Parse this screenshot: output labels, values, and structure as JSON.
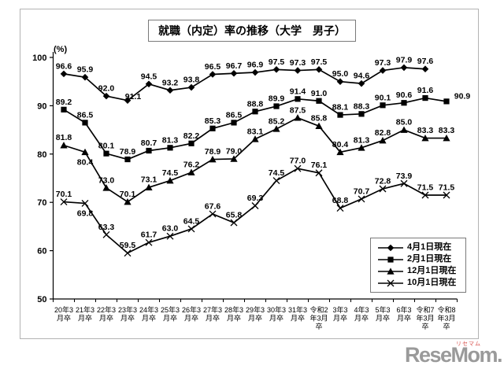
{
  "chart_data": {
    "type": "line",
    "title": "就職（内定）率の推移（大学　男子）",
    "unit_label": "(%)",
    "xlabel": "",
    "ylabel": "%",
    "ylim": [
      50,
      100
    ],
    "yticks": [
      100,
      90,
      80,
      70,
      60,
      50
    ],
    "grid": false,
    "legend_position": "inside-bottom-right",
    "categories": [
      "20年3月卒",
      "21年3月卒",
      "22年3月卒",
      "23年3月卒",
      "24年3月卒",
      "25年3月卒",
      "26年3月卒",
      "27年3月卒",
      "28年3月卒",
      "29年3月卒",
      "30年3月卒",
      "31年3月卒",
      "令和2年3月卒",
      "3年3月卒",
      "4年3月卒",
      "5年3月卒",
      "6年3月卒",
      "令和7年3月卒",
      "令和8年3月卒"
    ],
    "category_label_lines": [
      [
        "20年3",
        "月卒"
      ],
      [
        "21年3",
        "月卒"
      ],
      [
        "22年3",
        "月卒"
      ],
      [
        "23年3",
        "月卒"
      ],
      [
        "24年3",
        "月卒"
      ],
      [
        "25年3",
        "月卒"
      ],
      [
        "26年3",
        "月卒"
      ],
      [
        "27年3",
        "月卒"
      ],
      [
        "28年3",
        "月卒"
      ],
      [
        "29年3",
        "月卒"
      ],
      [
        "30年3",
        "月卒"
      ],
      [
        "31年3",
        "月卒"
      ],
      [
        "令和2",
        "年3月",
        "卒"
      ],
      [
        "3年3",
        "月卒"
      ],
      [
        "4年3",
        "月卒"
      ],
      [
        "5年3",
        "月卒"
      ],
      [
        "6年3",
        "月卒"
      ],
      [
        "令和7",
        "年3月",
        "卒"
      ],
      [
        "令和8",
        "年3月",
        "卒"
      ]
    ],
    "series": [
      {
        "name": "4月1日現在",
        "marker": "diamond",
        "color": "#000000",
        "values": [
          96.6,
          95.9,
          92.0,
          91.1,
          94.5,
          93.2,
          93.8,
          96.5,
          96.7,
          96.9,
          97.5,
          97.3,
          97.5,
          95.0,
          94.6,
          97.3,
          97.9,
          97.6,
          null
        ],
        "label_offsets": {
          "3": [
            7,
            5
          ]
        }
      },
      {
        "name": "2月1日現在",
        "marker": "square",
        "color": "#000000",
        "values": [
          89.2,
          86.5,
          80.1,
          78.9,
          80.7,
          81.3,
          82.2,
          85.3,
          86.5,
          88.8,
          89.9,
          91.4,
          91.0,
          88.1,
          88.3,
          90.1,
          90.6,
          91.6,
          90.9
        ],
        "label_offsets": {
          "18": [
            20,
            3
          ]
        }
      },
      {
        "name": "12月1日現在",
        "marker": "triangle",
        "color": "#000000",
        "values": [
          81.8,
          80.4,
          73.0,
          70.1,
          73.1,
          74.5,
          76.2,
          78.9,
          79.0,
          83.1,
          85.2,
          87.5,
          85.8,
          80.4,
          81.3,
          82.8,
          85.0,
          83.3,
          83.3
        ],
        "labels_below": [
          1
        ]
      },
      {
        "name": "10月1日現在",
        "marker": "x",
        "color": "#000000",
        "values": [
          70.1,
          69.8,
          63.3,
          59.5,
          61.7,
          63.0,
          64.5,
          67.6,
          65.8,
          69.3,
          74.5,
          77.0,
          76.1,
          68.8,
          70.7,
          72.8,
          73.9,
          71.5,
          71.5
        ],
        "labels_below": [
          1
        ]
      }
    ]
  },
  "watermark": {
    "text": "ReseMom.",
    "ruby": "リセマム",
    "color": "#9a9a9a"
  }
}
